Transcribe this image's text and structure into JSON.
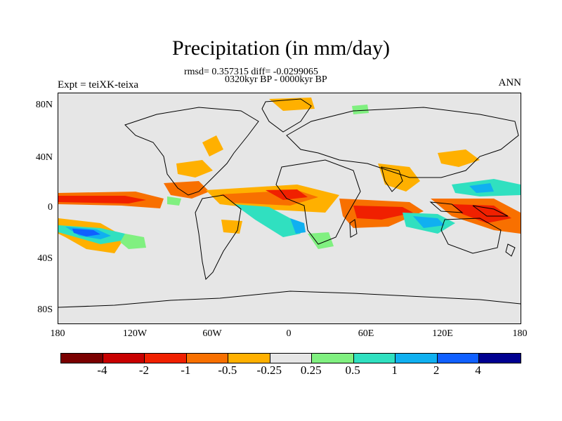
{
  "title": "Precipitation (in mm/day)",
  "stats": "rmsd= 0.357315 diff= -0.0299065",
  "period": "0320kyr BP - 0000kyr BP",
  "expt": "Expt = teiXK-teixa",
  "season": "ANN",
  "lat_ticks": [
    "80N",
    "40N",
    "0",
    "40S",
    "80S"
  ],
  "lon_ticks": [
    "180",
    "120W",
    "60W",
    "0",
    "60E",
    "120E",
    "180"
  ],
  "colorbar": {
    "colors": [
      "#7a0000",
      "#c80000",
      "#f02000",
      "#f87000",
      "#ffb000",
      "#e6e6e6",
      "#80f080",
      "#30e0c0",
      "#10b0f0",
      "#1060ff",
      "#000090"
    ],
    "labels": [
      "-4",
      "-2",
      "-1",
      "-0.5",
      "-0.25",
      "0.25",
      "0.5",
      "1",
      "2",
      "4"
    ]
  },
  "anomaly_colors": {
    "strong_dry": "#f02000",
    "dry": "#f87000",
    "weak_dry": "#ffb000",
    "weak_wet": "#80f080",
    "wet": "#30e0c0",
    "very_wet": "#10b0f0",
    "strong_wet": "#1060ff"
  }
}
